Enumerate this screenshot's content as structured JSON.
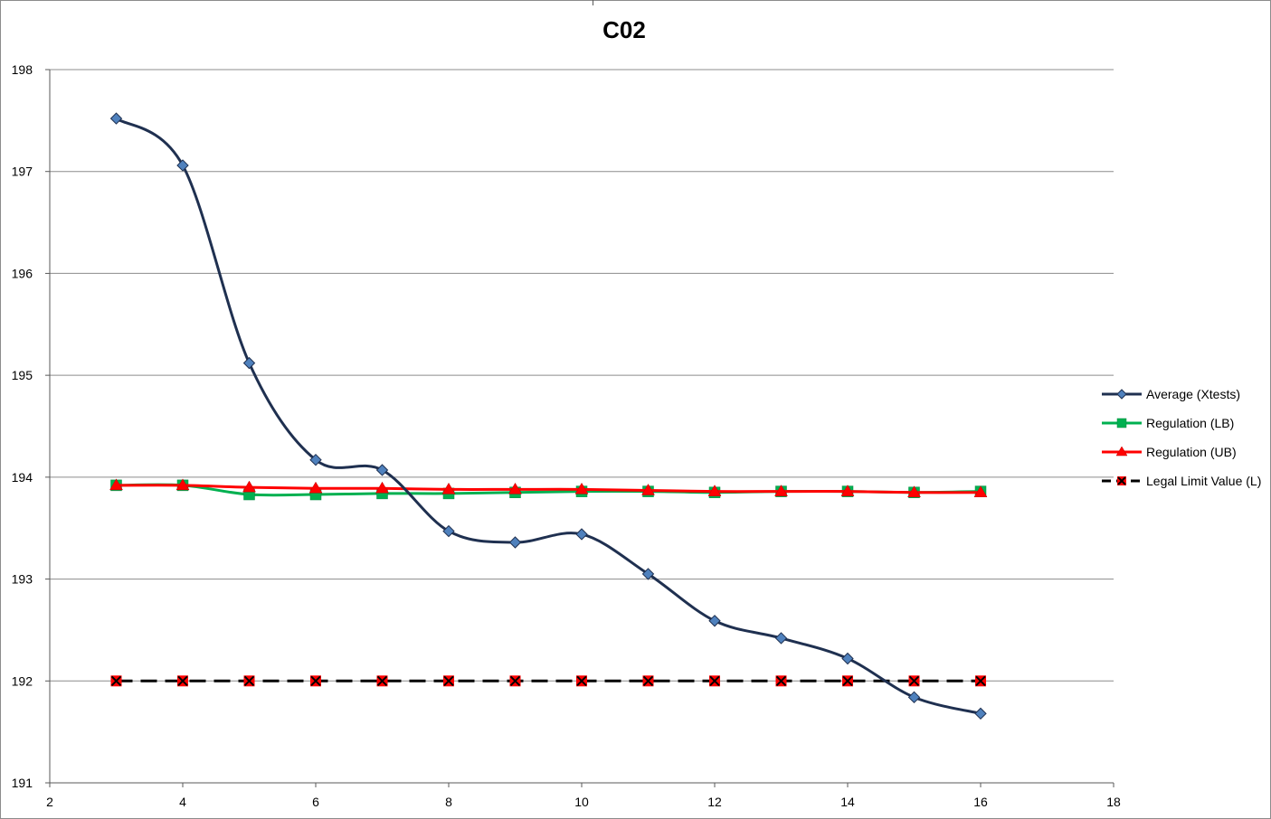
{
  "chart_data": {
    "type": "line",
    "title": "C02",
    "xlabel": "",
    "ylabel": "",
    "xlim": [
      2,
      18
    ],
    "ylim": [
      191,
      198
    ],
    "xticks": [
      2,
      4,
      6,
      8,
      10,
      12,
      14,
      16,
      18
    ],
    "yticks": [
      191,
      192,
      193,
      194,
      195,
      196,
      197,
      198
    ],
    "grid": "horizontal",
    "legend_position": "right",
    "series": [
      {
        "name": "Average (Xtests)",
        "color": "#1f3050",
        "marker": "diamond",
        "marker_color": "#4f81bd",
        "line_style": "solid",
        "smooth": true,
        "x": [
          3,
          4,
          5,
          6,
          7,
          8,
          9,
          10,
          11,
          12,
          13,
          14,
          15,
          16
        ],
        "y": [
          197.52,
          197.06,
          195.12,
          194.17,
          194.07,
          193.47,
          193.36,
          193.44,
          193.05,
          192.59,
          192.42,
          192.22,
          191.84,
          191.68
        ]
      },
      {
        "name": "Regulation (LB)",
        "color": "#00b050",
        "marker": "square",
        "marker_color": "#00b050",
        "line_style": "solid",
        "smooth": true,
        "x": [
          3,
          4,
          5,
          6,
          7,
          8,
          9,
          10,
          11,
          12,
          13,
          14,
          15,
          16
        ],
        "y": [
          193.92,
          193.92,
          193.83,
          193.83,
          193.84,
          193.84,
          193.85,
          193.86,
          193.86,
          193.85,
          193.86,
          193.86,
          193.85,
          193.86
        ]
      },
      {
        "name": "Regulation (UB)",
        "color": "#ff0000",
        "marker": "triangle",
        "marker_color": "#ff0000",
        "line_style": "solid",
        "smooth": true,
        "x": [
          3,
          4,
          5,
          6,
          7,
          8,
          9,
          10,
          11,
          12,
          13,
          14,
          15,
          16
        ],
        "y": [
          193.92,
          193.92,
          193.9,
          193.89,
          193.89,
          193.88,
          193.88,
          193.88,
          193.87,
          193.86,
          193.86,
          193.86,
          193.85,
          193.85
        ]
      },
      {
        "name": "Legal Limit Value (L)",
        "color": "#000000",
        "marker": "x-square",
        "marker_color": "#ff0000",
        "line_style": "dashed",
        "smooth": false,
        "x": [
          3,
          4,
          5,
          6,
          7,
          8,
          9,
          10,
          11,
          12,
          13,
          14,
          15,
          16
        ],
        "y": [
          192,
          192,
          192,
          192,
          192,
          192,
          192,
          192,
          192,
          192,
          192,
          192,
          192,
          192
        ]
      }
    ]
  }
}
